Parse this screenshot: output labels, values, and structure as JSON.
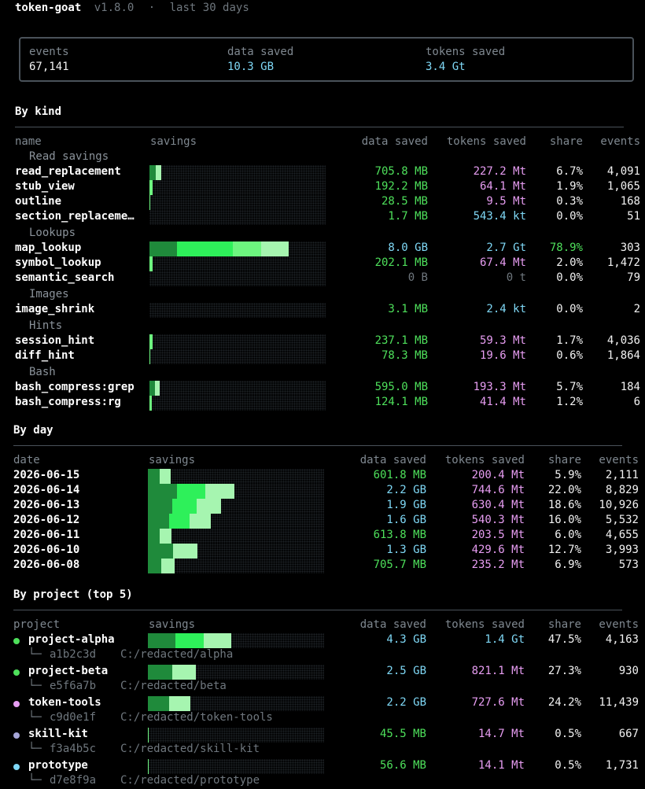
{
  "header": {
    "app": "token-goat",
    "version": "v1.8.0",
    "sep": "·",
    "period": "last 30 days"
  },
  "summary": {
    "events_label": "events",
    "events_value": "67,141",
    "data_label": "data saved",
    "data_value": "10.3 GB",
    "tokens_label": "tokens saved",
    "tokens_value": "3.4 Gt"
  },
  "columns": {
    "name": "name",
    "date": "date",
    "project": "project",
    "savings": "savings",
    "data": "data saved",
    "tokens": "tokens saved",
    "share": "share",
    "events": "events"
  },
  "kind": {
    "title": "By kind",
    "rows": [
      {
        "group": "Read savings"
      },
      {
        "name": "read_replacement",
        "data": "705.8 MB",
        "tokens": "227.2 Mt",
        "share": "6.7%",
        "events": "4,091",
        "bar": 0.067
      },
      {
        "name": "stub_view",
        "data": "192.2 MB",
        "tokens": "64.1 Mt",
        "share": "1.9%",
        "events": "1,065",
        "bar": 0.019
      },
      {
        "name": "outline",
        "data": "28.5 MB",
        "tokens": "9.5 Mt",
        "share": "0.3%",
        "events": "168",
        "bar": 0.003
      },
      {
        "name": "section_replaceme…",
        "data": "1.7 MB",
        "tokens": "543.4 kt",
        "share": "0.0%",
        "events": "51",
        "bar": 0
      },
      {
        "group": "Lookups"
      },
      {
        "name": "map_lookup",
        "data": "8.0 GB",
        "tokens": "2.7 Gt",
        "share": "78.9%",
        "events": "303",
        "bar": 0.789
      },
      {
        "name": "symbol_lookup",
        "data": "202.1 MB",
        "tokens": "67.4 Mt",
        "share": "2.0%",
        "events": "1,472",
        "bar": 0.02
      },
      {
        "name": "semantic_search",
        "data": "0 B",
        "tokens": "0 t",
        "share": "0.0%",
        "events": "79",
        "bar": 0
      },
      {
        "group": "Images"
      },
      {
        "name": "image_shrink",
        "data": "3.1 MB",
        "tokens": "2.4 kt",
        "share": "0.0%",
        "events": "2",
        "bar": 0
      },
      {
        "group": "Hints"
      },
      {
        "name": "session_hint",
        "data": "237.1 MB",
        "tokens": "59.3 Mt",
        "share": "1.7%",
        "events": "4,036",
        "bar": 0.017
      },
      {
        "name": "diff_hint",
        "data": "78.3 MB",
        "tokens": "19.6 Mt",
        "share": "0.6%",
        "events": "1,864",
        "bar": 0.006
      },
      {
        "group": "Bash"
      },
      {
        "name": "bash_compress:grep",
        "data": "595.0 MB",
        "tokens": "193.3 Mt",
        "share": "5.7%",
        "events": "184",
        "bar": 0.057
      },
      {
        "name": "bash_compress:rg",
        "data": "124.1 MB",
        "tokens": "41.4 Mt",
        "share": "1.2%",
        "events": "6",
        "bar": 0.012
      }
    ]
  },
  "day": {
    "title": "By day",
    "rows": [
      {
        "date": "2026-06-15",
        "data": "601.8 MB",
        "tokens": "200.4 Mt",
        "share": "5.9%",
        "events": "2,111",
        "bar": 0.059
      },
      {
        "date": "2026-06-14",
        "data": "2.2 GB",
        "tokens": "744.6 Mt",
        "share": "22.0%",
        "events": "8,829",
        "bar": 0.22
      },
      {
        "date": "2026-06-13",
        "data": "1.9 GB",
        "tokens": "630.4 Mt",
        "share": "18.6%",
        "events": "10,926",
        "bar": 0.186
      },
      {
        "date": "2026-06-12",
        "data": "1.6 GB",
        "tokens": "540.3 Mt",
        "share": "16.0%",
        "events": "5,532",
        "bar": 0.16
      },
      {
        "date": "2026-06-11",
        "data": "613.8 MB",
        "tokens": "203.5 Mt",
        "share": "6.0%",
        "events": "4,655",
        "bar": 0.06
      },
      {
        "date": "2026-06-10",
        "data": "1.3 GB",
        "tokens": "429.6 Mt",
        "share": "12.7%",
        "events": "3,993",
        "bar": 0.127
      },
      {
        "date": "2026-06-08",
        "data": "705.7 MB",
        "tokens": "235.2 Mt",
        "share": "6.9%",
        "events": "573",
        "bar": 0.069
      }
    ]
  },
  "project": {
    "title": "By project (top 5)",
    "rows": [
      {
        "name": "project-alpha",
        "hash": "a1b2c3d",
        "path": "C:/redacted/alpha",
        "data": "4.3 GB",
        "tokens": "1.4 Gt",
        "share": "47.5%",
        "events": "4,163",
        "bar": 0.475,
        "dot": "#4ee05b"
      },
      {
        "name": "project-beta",
        "hash": "e5f6a7b",
        "path": "C:/redacted/beta",
        "data": "2.5 GB",
        "tokens": "821.1 Mt",
        "share": "27.3%",
        "events": "930",
        "bar": 0.273,
        "dot": "#4ee05b"
      },
      {
        "name": "token-tools",
        "hash": "c9d0e1f",
        "path": "C:/redacted/token-tools",
        "data": "2.2 GB",
        "tokens": "727.6 Mt",
        "share": "24.2%",
        "events": "11,439",
        "bar": 0.242,
        "dot": "#e79df2"
      },
      {
        "name": "skill-kit",
        "hash": "f3a4b5c",
        "path": "C:/redacted/skill-kit",
        "data": "45.5 MB",
        "tokens": "14.7 Mt",
        "share": "0.5%",
        "events": "667",
        "bar": 0.005,
        "dot": "#a6a6d8"
      },
      {
        "name": "prototype",
        "hash": "d7e8f9a",
        "path": "C:/redacted/prototype",
        "data": "56.6 MB",
        "tokens": "14.1 Mt",
        "share": "0.5%",
        "events": "1,731",
        "bar": 0.005,
        "dot": "#7fd8f6"
      }
    ],
    "tree_glyph": "└─"
  },
  "colors": {
    "bar_dark": "#1f8a3b",
    "bar_mid": "#2ef05a",
    "bar_light": "#6df57f",
    "bar_pale": "#a6f5b0"
  }
}
